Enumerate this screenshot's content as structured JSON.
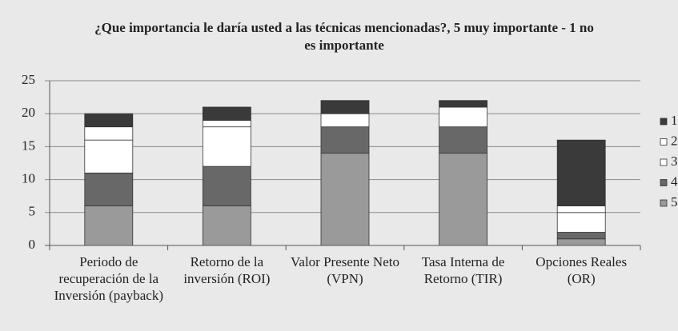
{
  "chart_data": {
    "type": "stacked_bar",
    "title": "¿Que importancia le daría usted a las técnicas mencionadas?, 5 muy importante - 1 no es importante",
    "categories": [
      "Periodo de recuperación de la Inversión (payback)",
      "Retorno de la inversión (ROI)",
      "Valor Presente Neto (VPN)",
      "Tasa Interna de Retorno (TIR)",
      "Opciones Reales (OR)"
    ],
    "series": [
      {
        "name": "5",
        "color": "#9a9a9a",
        "values": [
          6,
          6,
          14,
          14,
          1
        ]
      },
      {
        "name": "4",
        "color": "#686868",
        "values": [
          5,
          6,
          4,
          4,
          1
        ]
      },
      {
        "name": "3",
        "color": "#ffffff",
        "values": [
          5,
          6,
          2,
          3,
          3
        ]
      },
      {
        "name": "2",
        "color": "#ffffff",
        "values": [
          2,
          1,
          0,
          0,
          1
        ]
      },
      {
        "name": "1",
        "color": "#3a3a3a",
        "values": [
          2,
          2,
          2,
          1,
          10
        ]
      }
    ],
    "ylim": [
      0,
      25
    ],
    "yticks": [
      0,
      5,
      10,
      15,
      20,
      25
    ],
    "grid": true,
    "legend": "right"
  }
}
